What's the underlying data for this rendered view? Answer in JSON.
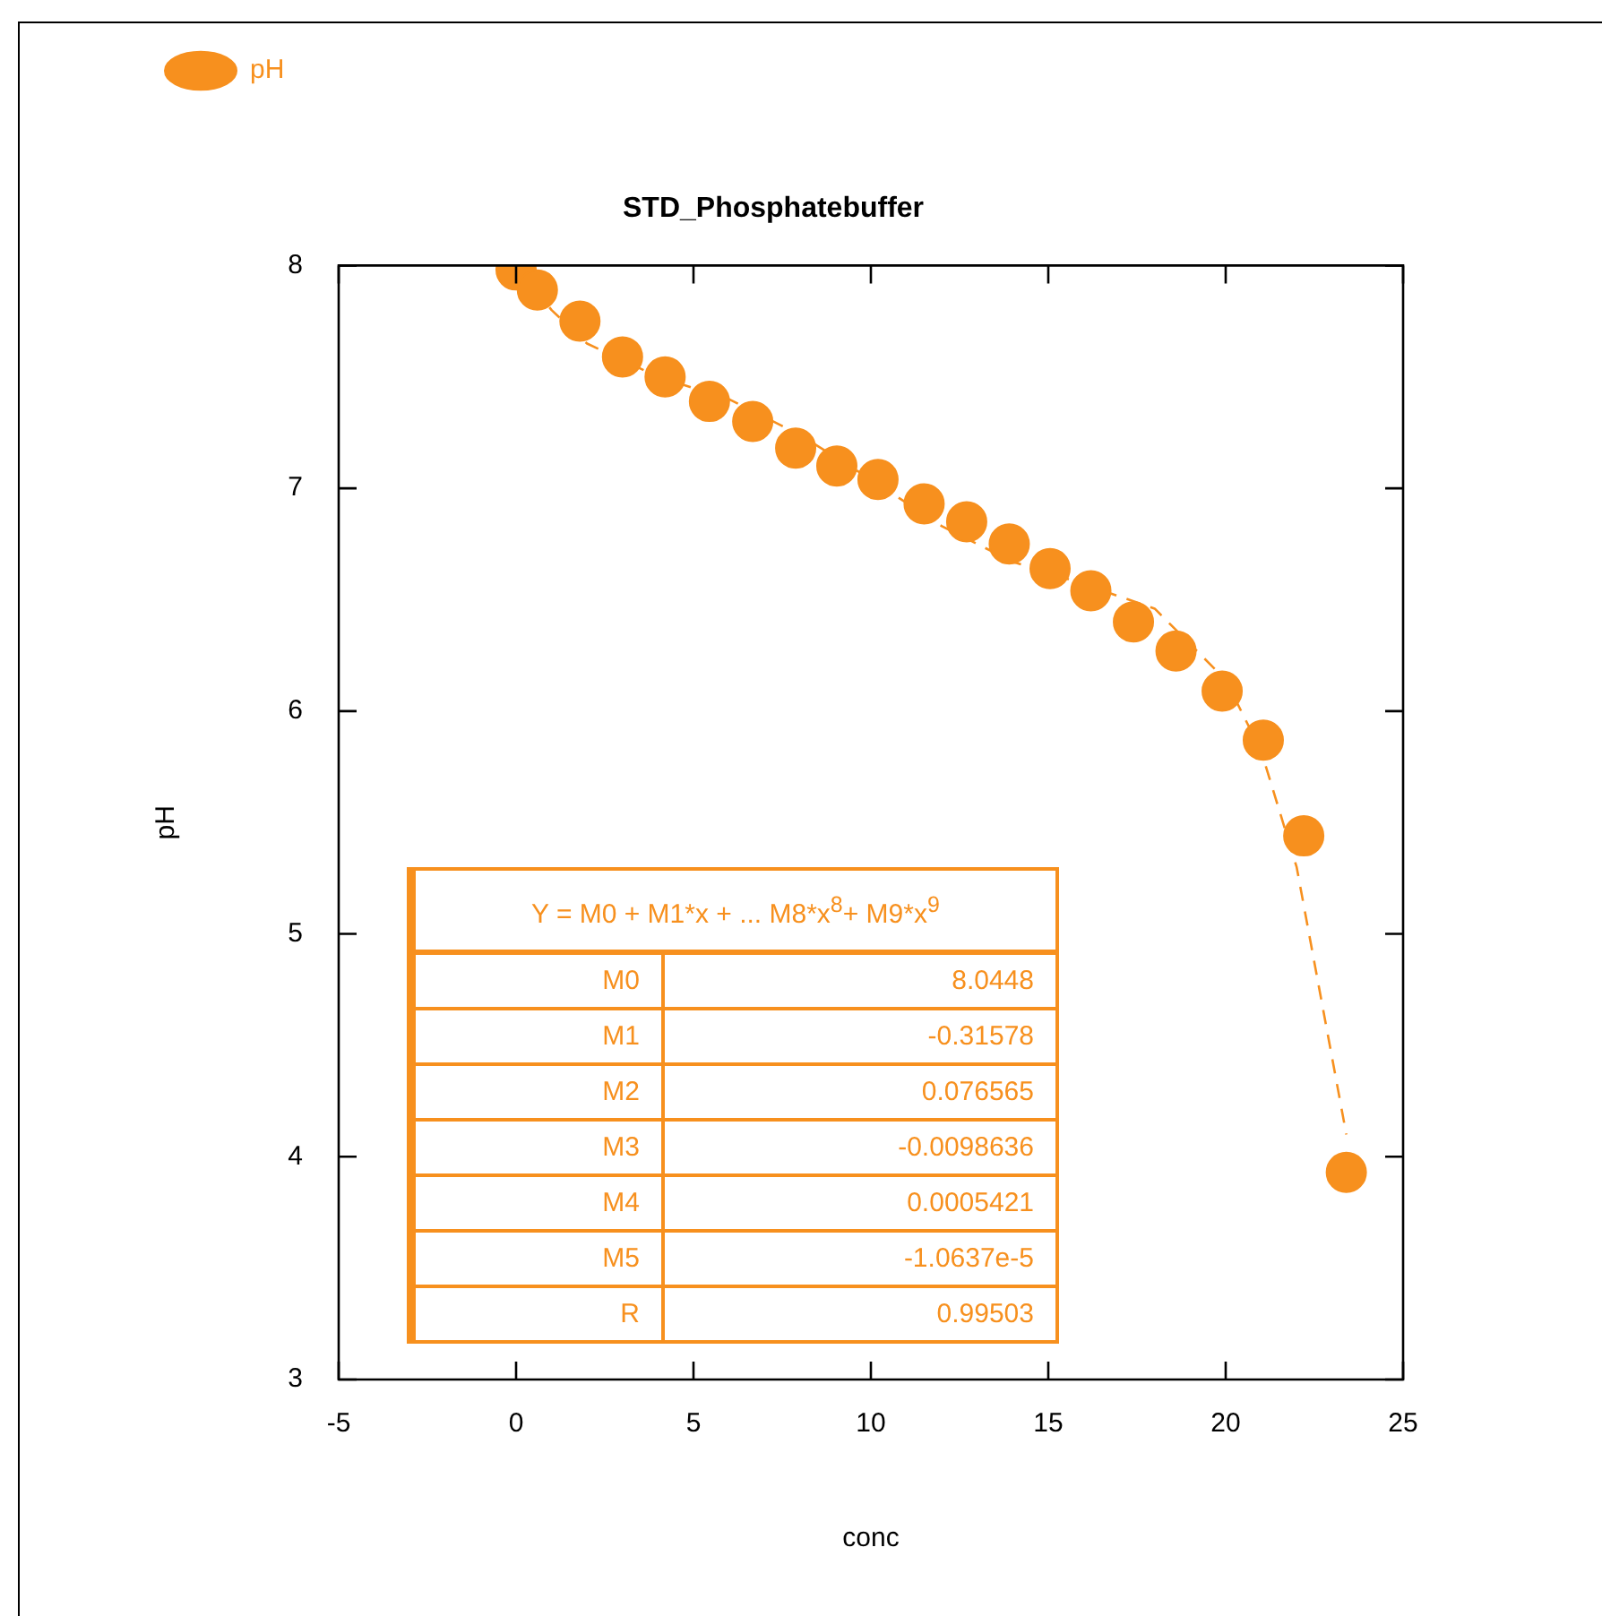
{
  "chart_data": {
    "type": "scatter",
    "title": "STD_Phosphatebuffer",
    "xlabel": "conc",
    "ylabel": "pH",
    "xlim": [
      -5,
      25
    ],
    "xticks": [
      -5,
      0,
      5,
      10,
      15,
      20,
      25
    ],
    "ylim": [
      3,
      8
    ],
    "yticks": [
      3,
      4,
      5,
      6,
      7,
      8
    ],
    "legend": "top left",
    "grid": false,
    "marker": "circle",
    "series": [
      {
        "name": "pH",
        "color": "#f7901e",
        "x": [
          0,
          0.6,
          1.8,
          3.0,
          4.2,
          5.45,
          6.67,
          7.88,
          9.04,
          10.2,
          11.5,
          12.7,
          13.9,
          15.05,
          16.2,
          17.4,
          18.6,
          19.9,
          21.06,
          22.2,
          23.4
        ],
        "values": [
          7.98,
          7.89,
          7.75,
          7.59,
          7.5,
          7.39,
          7.3,
          7.18,
          7.1,
          7.04,
          6.93,
          6.85,
          6.75,
          6.64,
          6.54,
          6.4,
          6.27,
          6.09,
          5.87,
          5.44,
          3.93
        ]
      },
      {
        "type": "line",
        "marker": "none",
        "line_style": "dashed",
        "color": "#f7901e",
        "x": [
          0.5,
          1,
          2,
          4,
          6,
          8,
          10,
          12,
          14,
          16,
          18,
          20,
          21,
          22,
          23.4
        ],
        "values": [
          7.9,
          7.8,
          7.65,
          7.5,
          7.4,
          7.24,
          7.04,
          6.83,
          6.67,
          6.57,
          6.46,
          6.14,
          5.82,
          5.3,
          4.1
        ]
      }
    ],
    "annotations": [
      "Y = M0 + M1*x + ... M8*x$^{8}$+ M9*x$^{9}$",
      "M0",
      "8.0448",
      "M1",
      "-0.31578",
      "M2",
      "0.076565",
      "M3",
      "-0.0098636",
      "M4",
      "0.0005421",
      "M5",
      "-1.0637e-5",
      "R",
      "0.99503"
    ]
  }
}
